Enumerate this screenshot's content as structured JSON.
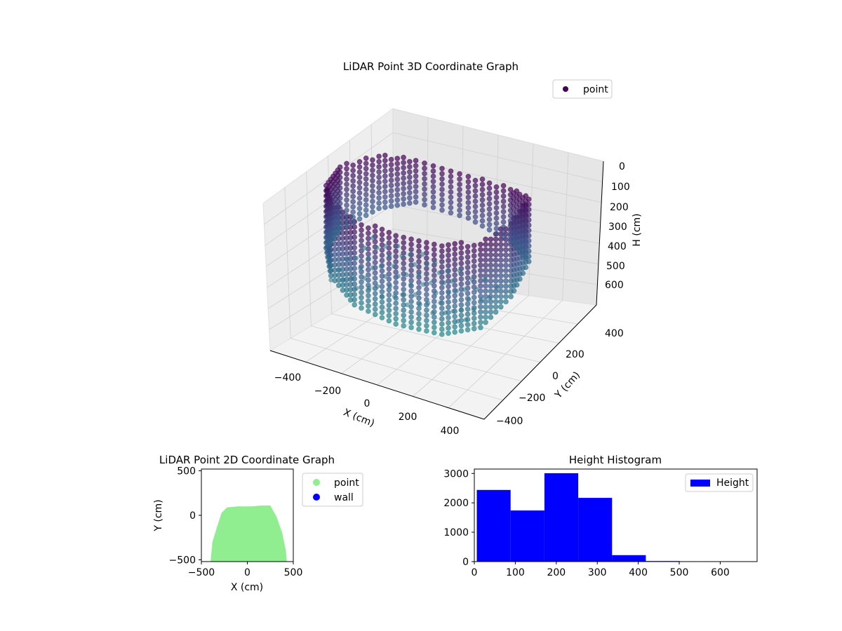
{
  "chart_data": [
    {
      "type": "scatter",
      "projection": "3d",
      "title": "LiDAR Point 3D Coordinate Graph",
      "xlabel": "X (cm)",
      "ylabel": "Y (cm)",
      "zlabel": "H (cm)",
      "xlim": [
        -500,
        500
      ],
      "ylim": [
        -500,
        500
      ],
      "zlim": [
        680,
        0
      ],
      "z_axis_inverted": true,
      "x_ticks": [
        "−400",
        "−200",
        "0",
        "200",
        "400"
      ],
      "y_ticks": [
        "−400",
        "−200",
        "0",
        "200",
        "400"
      ],
      "z_ticks": [
        "0",
        "100",
        "200",
        "300",
        "400",
        "500",
        "600"
      ],
      "colormap": "viridis (color by height)",
      "color_low": "#440154",
      "color_high": "#21918c",
      "grid": true,
      "legend": {
        "placement": "top-right",
        "entries": [
          "point"
        ]
      },
      "series": [
        {
          "name": "point",
          "description_points": [
            {
              "x": -380,
              "y": -250,
              "h": 300
            },
            {
              "x": -300,
              "y": -350,
              "h": 350
            },
            {
              "x": -150,
              "y": -420,
              "h": 400
            },
            {
              "x": 50,
              "y": -430,
              "h": 420
            },
            {
              "x": 250,
              "y": -400,
              "h": 420
            },
            {
              "x": 380,
              "y": -300,
              "h": 400
            },
            {
              "x": 420,
              "y": -100,
              "h": 350
            },
            {
              "x": 400,
              "y": 100,
              "h": 300
            },
            {
              "x": 300,
              "y": 120,
              "h": 250
            },
            {
              "x": 100,
              "y": 110,
              "h": 200
            },
            {
              "x": -150,
              "y": 100,
              "h": 200
            },
            {
              "x": -300,
              "y": 50,
              "h": 250
            },
            {
              "x": -400,
              "y": -100,
              "h": 300
            }
          ]
        }
      ]
    },
    {
      "type": "scatter",
      "title": "LiDAR Point 2D Coordinate Graph",
      "xlabel": "X (cm)",
      "ylabel": "Y (cm)",
      "xlim": [
        -500,
        500
      ],
      "ylim": [
        -520,
        520
      ],
      "x_ticks": [
        -500,
        0,
        500
      ],
      "y_ticks": [
        -500,
        0,
        500
      ],
      "legend": {
        "placement": "outside-right",
        "entries": [
          "point",
          "wall"
        ]
      },
      "series": [
        {
          "name": "point",
          "color": "#90ee90",
          "outline": [
            [
              -400,
              -520
            ],
            [
              -380,
              -300
            ],
            [
              -330,
              -130
            ],
            [
              -280,
              30
            ],
            [
              -220,
              90
            ],
            [
              -100,
              100
            ],
            [
              50,
              100
            ],
            [
              150,
              110
            ],
            [
              250,
              110
            ],
            [
              320,
              -20
            ],
            [
              380,
              -200
            ],
            [
              420,
              -400
            ],
            [
              430,
              -520
            ]
          ]
        },
        {
          "name": "wall",
          "color": "#0000ff",
          "points": []
        }
      ]
    },
    {
      "type": "bar",
      "subtype": "histogram",
      "title": "Height Histogram",
      "xlabel": "",
      "ylabel": "",
      "xlim": [
        0,
        690
      ],
      "ylim": [
        0,
        3150
      ],
      "x_ticks": [
        0,
        100,
        200,
        300,
        400,
        500,
        600
      ],
      "y_ticks": [
        0,
        1000,
        2000,
        3000
      ],
      "legend": {
        "placement": "top-right",
        "entries": [
          "Height"
        ]
      },
      "series": [
        {
          "name": "Height",
          "color": "#0000ff",
          "bin_edges": [
            6,
            88.5,
            171,
            253.5,
            336,
            418.5,
            501,
            583.5,
            666
          ],
          "values": [
            2440,
            1740,
            3010,
            2170,
            220,
            20,
            5,
            3
          ]
        }
      ]
    }
  ]
}
